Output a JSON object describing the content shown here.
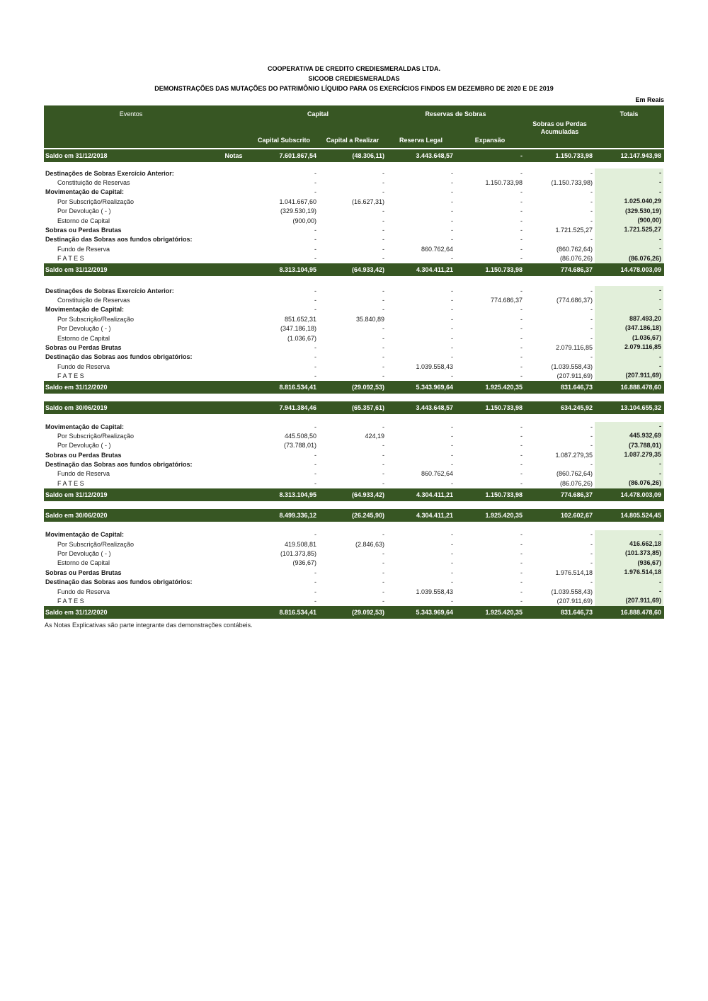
{
  "colors": {
    "header_green": "#375623",
    "totals_bg_green": "#E2EFDA",
    "text": "#111111",
    "header_text": "#ffffff"
  },
  "title": {
    "line1": "COOPERATIVA DE CREDITO CREDIESMERALDAS LTDA.",
    "line2": "SICOOB CREDIESMERALDAS",
    "line3": "DEMONSTRAÇÕES DAS MUTAÇÕES DO PATRIMÔNIO LÍQUIDO PARA OS EXERCÍCIOS FINDOS EM DEZEMBRO DE 2020 E DE 2019",
    "currency_note": "Em Reais"
  },
  "table": {
    "header": {
      "eventos": "Eventos",
      "capital_group": "Capital",
      "capital_subscrito": "Capital Subscrito",
      "capital_a_realizar": "Capital a Realizar",
      "reservas_group": "Reservas de Sobras",
      "reserva_legal": "Reserva Legal",
      "expansao": "Expansão",
      "sobras_acumuladas": "Sobras ou Perdas Acumuladas",
      "totais": "Totais"
    },
    "columns": [
      "Capital Subscrito",
      "Capital a Realizar",
      "Reserva Legal",
      "Expansão",
      "Sobras ou Perdas Acumuladas",
      "Totais"
    ],
    "rows": [
      {
        "type": "saldo",
        "label": "Saldo em 31/12/2018",
        "notas": "Notas",
        "cells": [
          "7.601.867,54",
          "(48.306,11)",
          "3.443.648,57",
          "-",
          "1.150.733,98",
          "12.147.943,98"
        ]
      },
      {
        "type": "gap",
        "h": 9
      },
      {
        "type": "item",
        "label": "Destinações de Sobras Exercício Anterior:",
        "bold": true,
        "indent": false,
        "cells": [
          "-",
          "-",
          "-",
          "-",
          "-",
          "-"
        ]
      },
      {
        "type": "item",
        "label": "Constituição de Reservas",
        "bold": false,
        "indent": true,
        "cells": [
          "-",
          "-",
          "-",
          "1.150.733,98",
          "(1.150.733,98)",
          "-"
        ]
      },
      {
        "type": "item",
        "label": "Movimentação de Capital:",
        "bold": true,
        "indent": false,
        "cells": [
          "-",
          "-",
          "-",
          "-",
          "-",
          "-"
        ]
      },
      {
        "type": "item",
        "label": "Por Subscrição/Realização",
        "bold": false,
        "indent": true,
        "cells": [
          "1.041.667,60",
          "(16.627,31)",
          "-",
          "-",
          "-",
          "1.025.040,29"
        ]
      },
      {
        "type": "item",
        "label": "Por  Devolução ( - )",
        "bold": false,
        "indent": true,
        "cells": [
          "(329.530,19)",
          "-",
          "-",
          "-",
          "-",
          "(329.530,19)"
        ]
      },
      {
        "type": "item",
        "label": "Estorno de Capital",
        "bold": false,
        "indent": true,
        "cells": [
          "(900,00)",
          "-",
          "-",
          "-",
          "-",
          "(900,00)"
        ]
      },
      {
        "type": "item",
        "label": "Sobras ou Perdas Brutas",
        "bold": true,
        "indent": false,
        "cells": [
          "-",
          "-",
          "-",
          "-",
          "1.721.525,27",
          "1.721.525,27"
        ]
      },
      {
        "type": "item",
        "label": "Destinação das Sobras aos fundos obrigatórios:",
        "bold": true,
        "indent": false,
        "cells": [
          "-",
          "-",
          "-",
          "-",
          "-",
          "-"
        ]
      },
      {
        "type": "item",
        "label": "Fundo de Reserva",
        "bold": false,
        "indent": true,
        "cells": [
          "-",
          "-",
          "860.762,64",
          "-",
          "(860.762,64)",
          "-"
        ]
      },
      {
        "type": "item",
        "label": "F A T E S",
        "bold": false,
        "indent": true,
        "cells": [
          "-",
          "-",
          "-",
          "-",
          "(86.076,26)",
          "(86.076,26)"
        ]
      },
      {
        "type": "saldo",
        "label": "Saldo em 31/12/2019",
        "notas": "",
        "cells": [
          "8.313.104,95",
          "(64.933,42)",
          "4.304.411,21",
          "1.150.733,98",
          "774.686,37",
          "14.478.003,09"
        ]
      },
      {
        "type": "gap",
        "h": 14
      },
      {
        "type": "item",
        "label": "Destinações de Sobras Exercício Anterior:",
        "bold": true,
        "indent": false,
        "cells": [
          "-",
          "-",
          "-",
          "-",
          "-",
          "-"
        ]
      },
      {
        "type": "item",
        "label": "Constituição de Reservas",
        "bold": false,
        "indent": true,
        "cells": [
          "-",
          "-",
          "-",
          "774.686,37",
          "(774.686,37)",
          "-"
        ]
      },
      {
        "type": "item",
        "label": "Movimentação de Capital:",
        "bold": true,
        "indent": false,
        "cells": [
          "-",
          "-",
          "-",
          "-",
          "-",
          "-"
        ]
      },
      {
        "type": "item",
        "label": "Por Subscrição/Realização",
        "bold": false,
        "indent": true,
        "cells": [
          "851.652,31",
          "35.840,89",
          "-",
          "-",
          "-",
          "887.493,20"
        ]
      },
      {
        "type": "item",
        "label": "Por  Devolução ( - )",
        "bold": false,
        "indent": true,
        "cells": [
          "(347.186,18)",
          "-",
          "-",
          "-",
          "-",
          "(347.186,18)"
        ]
      },
      {
        "type": "item",
        "label": "Estorno de Capital",
        "bold": false,
        "indent": true,
        "cells": [
          "(1.036,67)",
          "-",
          "-",
          "-",
          "-",
          "(1.036,67)"
        ]
      },
      {
        "type": "item",
        "label": "Sobras ou Perdas Brutas",
        "bold": true,
        "indent": false,
        "cells": [
          "-",
          "-",
          "-",
          "-",
          "2.079.116,85",
          "2.079.116,85"
        ]
      },
      {
        "type": "item",
        "label": "Destinação das Sobras aos fundos obrigatórios:",
        "bold": true,
        "indent": false,
        "cells": [
          "-",
          "-",
          "-",
          "-",
          "-",
          "-"
        ]
      },
      {
        "type": "item",
        "label": "Fundo de Reserva",
        "bold": false,
        "indent": true,
        "cells": [
          "-",
          "-",
          "1.039.558,43",
          "-",
          "(1.039.558,43)",
          "-"
        ]
      },
      {
        "type": "item",
        "label": "F A T E S",
        "bold": false,
        "indent": true,
        "cells": [
          "-",
          "-",
          "-",
          "-",
          "(207.911,69)",
          "(207.911,69)"
        ]
      },
      {
        "type": "saldo",
        "label": "Saldo em 31/12/2020",
        "notas": "",
        "cells": [
          "8.816.534,41",
          "(29.092,53)",
          "5.343.969,64",
          "1.925.420,35",
          "831.646,73",
          "16.888.478,60"
        ]
      },
      {
        "type": "gap",
        "h": 11
      },
      {
        "type": "saldo",
        "label": "Saldo em 30/06/2019",
        "notas": "",
        "cells": [
          "7.941.384,46",
          "(65.357,61)",
          "3.443.648,57",
          "1.150.733,98",
          "634.245,92",
          "13.104.655,32"
        ]
      },
      {
        "type": "gap",
        "h": 11
      },
      {
        "type": "item",
        "label": "Movimentação de Capital:",
        "bold": true,
        "indent": false,
        "cells": [
          "-",
          "-",
          "-",
          "-",
          "-",
          "-"
        ]
      },
      {
        "type": "item",
        "label": "Por Subscrição/Realização",
        "bold": false,
        "indent": true,
        "cells": [
          "445.508,50",
          "424,19",
          "-",
          "-",
          "-",
          "445.932,69"
        ]
      },
      {
        "type": "item",
        "label": "Por  Devolução ( - )",
        "bold": false,
        "indent": true,
        "cells": [
          "(73.788,01)",
          "-",
          "-",
          "-",
          "-",
          "(73.788,01)"
        ]
      },
      {
        "type": "item",
        "label": "Sobras ou Perdas Brutas",
        "bold": true,
        "indent": false,
        "cells": [
          "-",
          "-",
          "-",
          "-",
          "1.087.279,35",
          "1.087.279,35"
        ]
      },
      {
        "type": "item",
        "label": "Destinação das Sobras aos fundos obrigatórios:",
        "bold": true,
        "indent": false,
        "cells": [
          "-",
          "-",
          "-",
          "-",
          "-",
          "-"
        ]
      },
      {
        "type": "item",
        "label": "Fundo de Reserva",
        "bold": false,
        "indent": true,
        "cells": [
          "-",
          "-",
          "860.762,64",
          "-",
          "(860.762,64)",
          "-"
        ]
      },
      {
        "type": "item",
        "label": "F A T E S",
        "bold": false,
        "indent": true,
        "cells": [
          "-",
          "-",
          "-",
          "-",
          "(86.076,26)",
          "(86.076,26)"
        ]
      },
      {
        "type": "saldo",
        "label": "Saldo em 31/12/2019",
        "notas": "",
        "cells": [
          "8.313.104,95",
          "(64.933,42)",
          "4.304.411,21",
          "1.150.733,98",
          "774.686,37",
          "14.478.003,09"
        ]
      },
      {
        "type": "gap",
        "h": 11
      },
      {
        "type": "saldo",
        "label": "Saldo em 30/06/2020",
        "notas": "",
        "cells": [
          "8.499.336,12",
          "(26.245,90)",
          "4.304.411,21",
          "1.925.420,35",
          "102.602,67",
          "14.805.524,45"
        ]
      },
      {
        "type": "gap",
        "h": 12
      },
      {
        "type": "item",
        "label": "Movimentação de Capital:",
        "bold": true,
        "indent": false,
        "cells": [
          "-",
          "-",
          "-",
          "-",
          "-",
          "-"
        ]
      },
      {
        "type": "item",
        "label": "Por Subscrição/Realização",
        "bold": false,
        "indent": true,
        "cells": [
          "419.508,81",
          "(2.846,63)",
          "-",
          "-",
          "-",
          "416.662,18"
        ]
      },
      {
        "type": "item",
        "label": "Por  Devolução ( - )",
        "bold": false,
        "indent": true,
        "cells": [
          "(101.373,85)",
          "-",
          "-",
          "-",
          "-",
          "(101.373,85)"
        ]
      },
      {
        "type": "item",
        "label": "Estorno de Capital",
        "bold": false,
        "indent": true,
        "cells": [
          "(936,67)",
          "-",
          "-",
          "-",
          "-",
          "(936,67)"
        ]
      },
      {
        "type": "item",
        "label": "Sobras ou Perdas Brutas",
        "bold": true,
        "indent": false,
        "cells": [
          "-",
          "-",
          "-",
          "-",
          "1.976.514,18",
          "1.976.514,18"
        ]
      },
      {
        "type": "item",
        "label": "Destinação das Sobras aos fundos obrigatórios:",
        "bold": true,
        "indent": false,
        "cells": [
          "-",
          "-",
          "-",
          "-",
          "-",
          "-"
        ]
      },
      {
        "type": "item",
        "label": "Fundo de Reserva",
        "bold": false,
        "indent": true,
        "cells": [
          "-",
          "-",
          "1.039.558,43",
          "-",
          "(1.039.558,43)",
          "-"
        ]
      },
      {
        "type": "item",
        "label": "F A T E S",
        "bold": false,
        "indent": true,
        "cells": [
          "-",
          "-",
          "-",
          "-",
          "(207.911,69)",
          "(207.911,69)"
        ]
      },
      {
        "type": "saldo",
        "label": "Saldo em 31/12/2020",
        "notas": "",
        "cells": [
          "8.816.534,41",
          "(29.092,53)",
          "5.343.969,64",
          "1.925.420,35",
          "831.646,73",
          "16.888.478,60"
        ]
      }
    ]
  },
  "footnote": "As Notas Explicativas são parte integrante das demonstrações contábeis."
}
